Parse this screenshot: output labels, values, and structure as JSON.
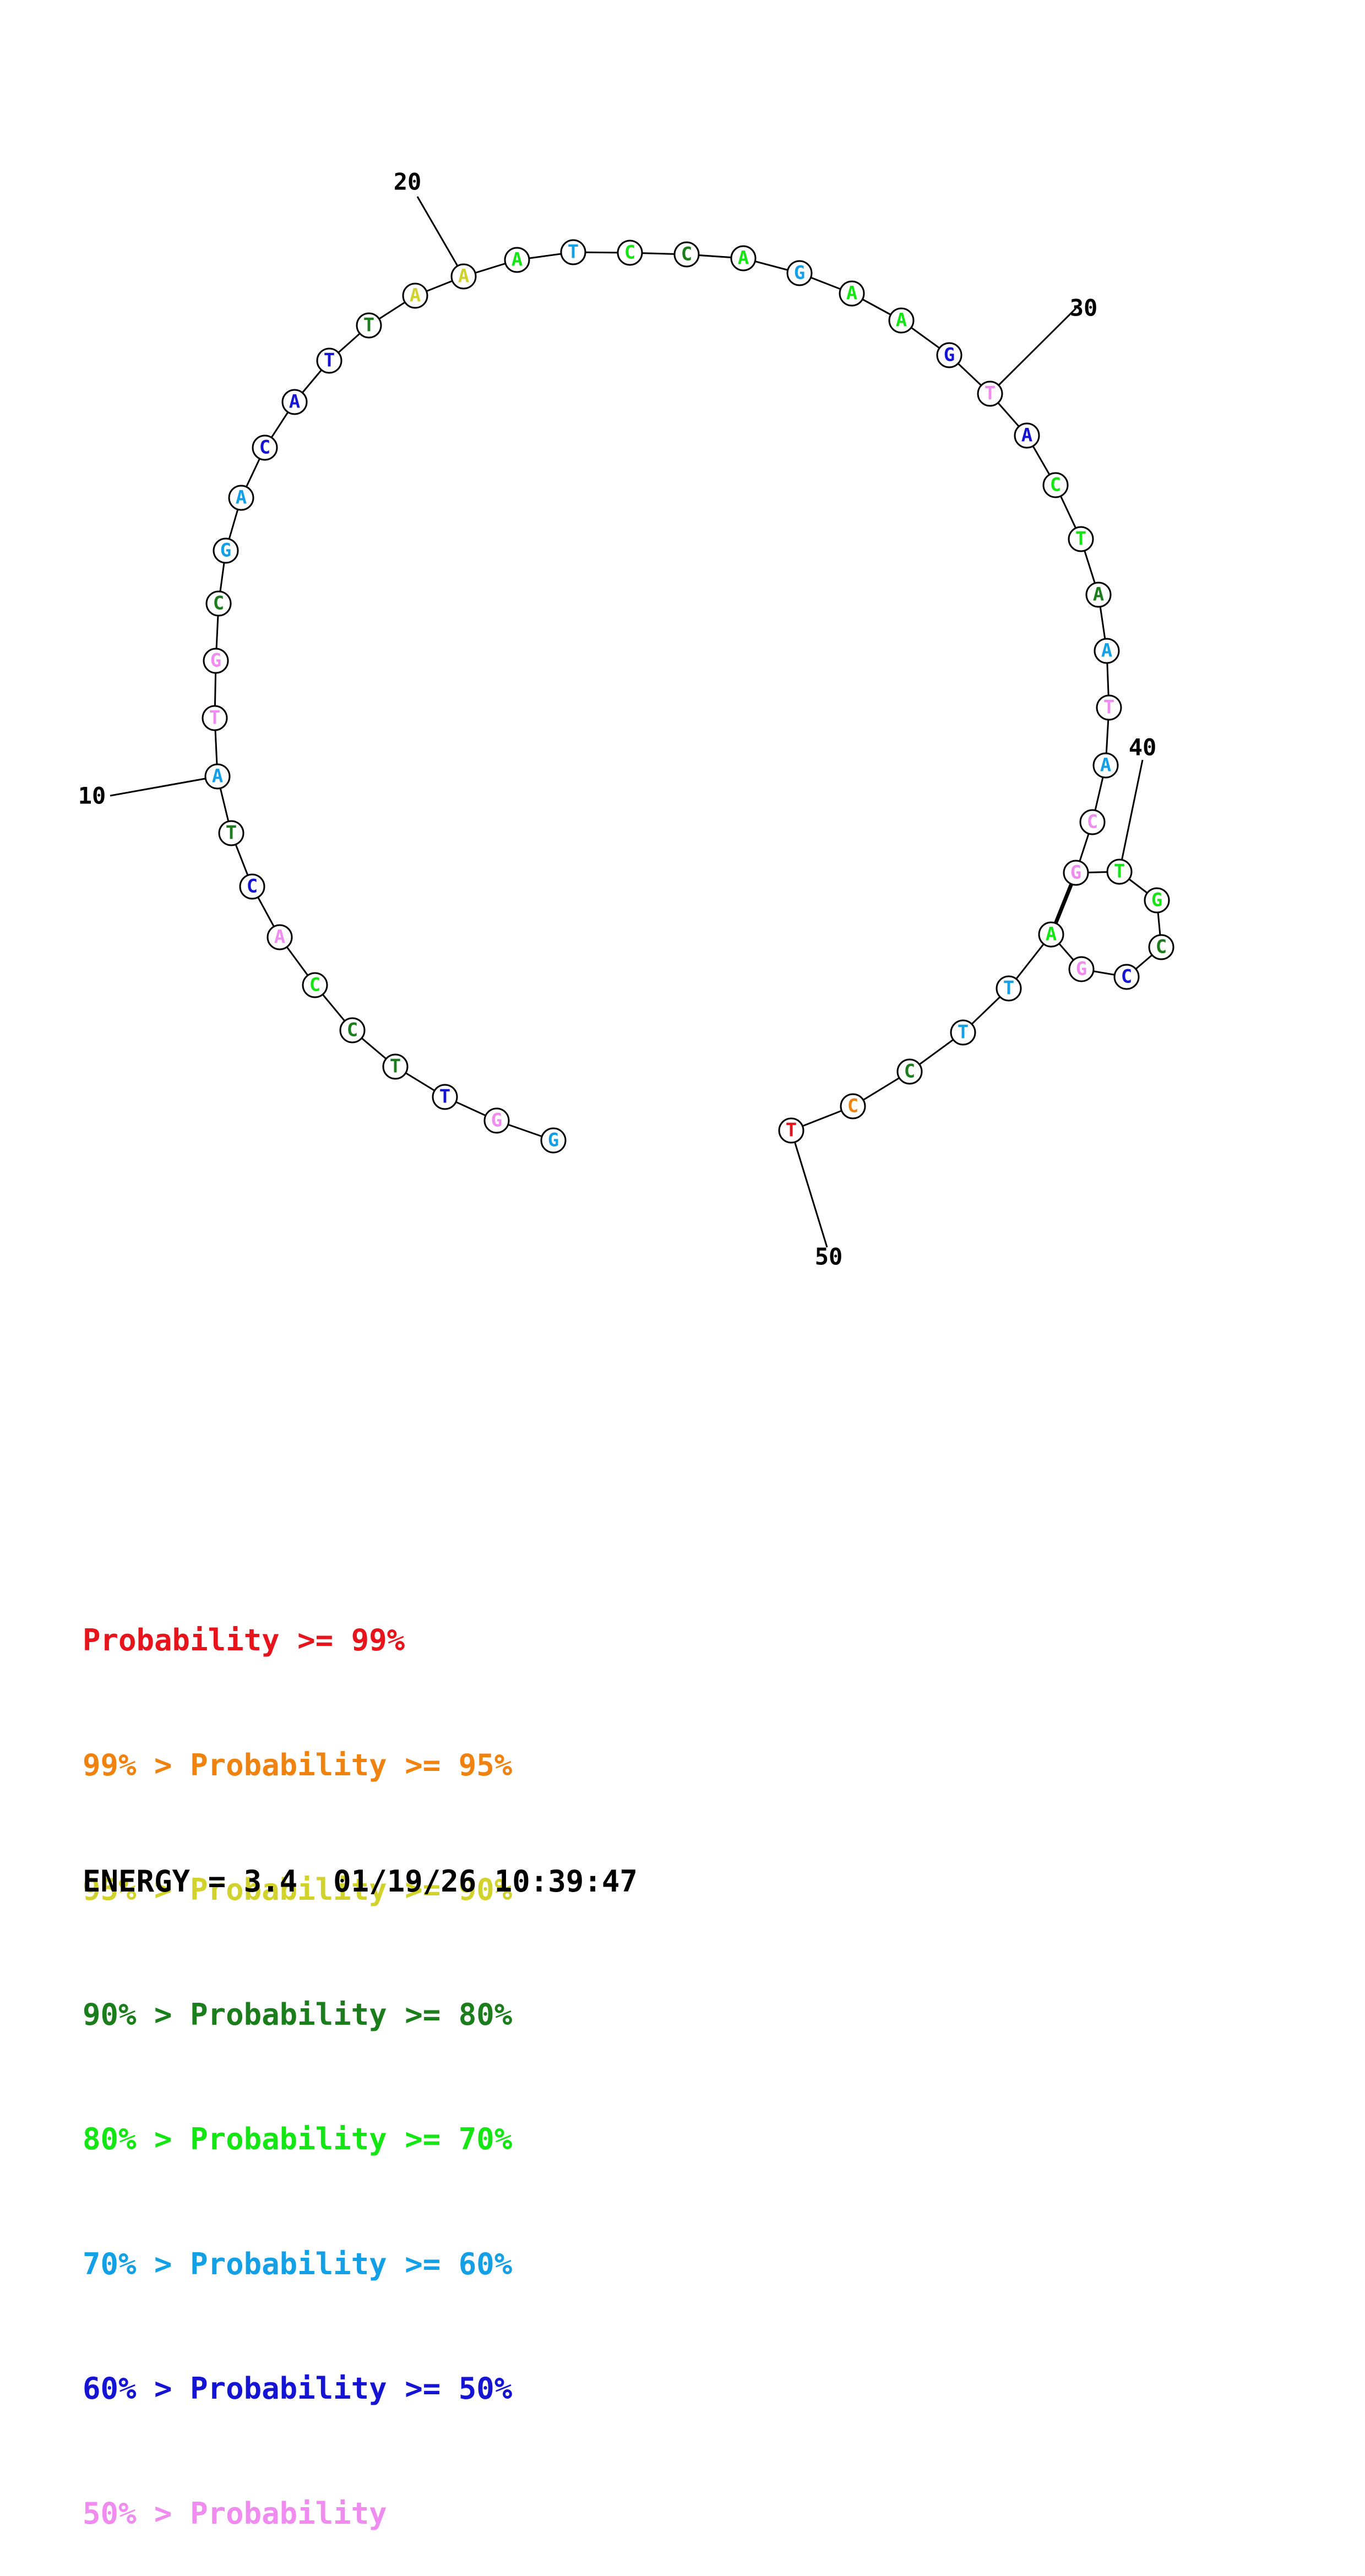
{
  "sequence": [
    {
      "base": "G",
      "cls": 5
    },
    {
      "base": "G",
      "cls": 7
    },
    {
      "base": "T",
      "cls": 6
    },
    {
      "base": "T",
      "cls": 3
    },
    {
      "base": "C",
      "cls": 3
    },
    {
      "base": "C",
      "cls": 4
    },
    {
      "base": "A",
      "cls": 7
    },
    {
      "base": "C",
      "cls": 6
    },
    {
      "base": "T",
      "cls": 3
    },
    {
      "base": "A",
      "cls": 5
    },
    {
      "base": "T",
      "cls": 7
    },
    {
      "base": "G",
      "cls": 7
    },
    {
      "base": "C",
      "cls": 3
    },
    {
      "base": "G",
      "cls": 5
    },
    {
      "base": "A",
      "cls": 5
    },
    {
      "base": "C",
      "cls": 6
    },
    {
      "base": "A",
      "cls": 6
    },
    {
      "base": "T",
      "cls": 6
    },
    {
      "base": "T",
      "cls": 3
    },
    {
      "base": "A",
      "cls": 2
    },
    {
      "base": "A",
      "cls": 2
    },
    {
      "base": "A",
      "cls": 4
    },
    {
      "base": "T",
      "cls": 5
    },
    {
      "base": "C",
      "cls": 4
    },
    {
      "base": "C",
      "cls": 3
    },
    {
      "base": "A",
      "cls": 4
    },
    {
      "base": "G",
      "cls": 5
    },
    {
      "base": "A",
      "cls": 4
    },
    {
      "base": "A",
      "cls": 4
    },
    {
      "base": "G",
      "cls": 6
    },
    {
      "base": "T",
      "cls": 7
    },
    {
      "base": "A",
      "cls": 6
    },
    {
      "base": "C",
      "cls": 4
    },
    {
      "base": "T",
      "cls": 4
    },
    {
      "base": "A",
      "cls": 3
    },
    {
      "base": "A",
      "cls": 5
    },
    {
      "base": "T",
      "cls": 7
    },
    {
      "base": "A",
      "cls": 5
    },
    {
      "base": "C",
      "cls": 7
    },
    {
      "base": "G",
      "cls": 7
    },
    {
      "base": "T",
      "cls": 4
    },
    {
      "base": "G",
      "cls": 4
    },
    {
      "base": "C",
      "cls": 3
    },
    {
      "base": "C",
      "cls": 6
    },
    {
      "base": "G",
      "cls": 7
    },
    {
      "base": "A",
      "cls": 4
    },
    {
      "base": "T",
      "cls": 5
    },
    {
      "base": "T",
      "cls": 5
    },
    {
      "base": "C",
      "cls": 3
    },
    {
      "base": "C",
      "cls": 1
    },
    {
      "base": "T",
      "cls": 0
    }
  ],
  "pairs": [
    [
      39,
      45
    ]
  ],
  "tick_labels": [
    {
      "label": "10",
      "index": 10
    },
    {
      "label": "20",
      "index": 20
    },
    {
      "label": "30",
      "index": 30
    },
    {
      "label": "40",
      "index": 40
    },
    {
      "label": "50",
      "index": 50
    }
  ],
  "legend": [
    {
      "prefix": "",
      "text": "Probability >= 99%",
      "color": "#e8141c"
    },
    {
      "prefix": "99% > ",
      "text": "Probability >= 95%",
      "color": "#f0820f"
    },
    {
      "prefix": "95% > ",
      "text": "Probability >= 90%",
      "color": "#d2d22d"
    },
    {
      "prefix": "90% > ",
      "text": "Probability >= 80%",
      "color": "#1b7d1b"
    },
    {
      "prefix": "80% > ",
      "text": "Probability >= 70%",
      "color": "#14e614"
    },
    {
      "prefix": "70% > ",
      "text": "Probability >= 60%",
      "color": "#14a0e6"
    },
    {
      "prefix": "60% > ",
      "text": "Probability >= 50%",
      "color": "#1414d2"
    },
    {
      "prefix": "50% > ",
      "text": "Probability",
      "color": "#f08cf0"
    }
  ],
  "energy_text": "ENERGY = 3.4",
  "timestamp": "01/19/26 10:39:47"
}
